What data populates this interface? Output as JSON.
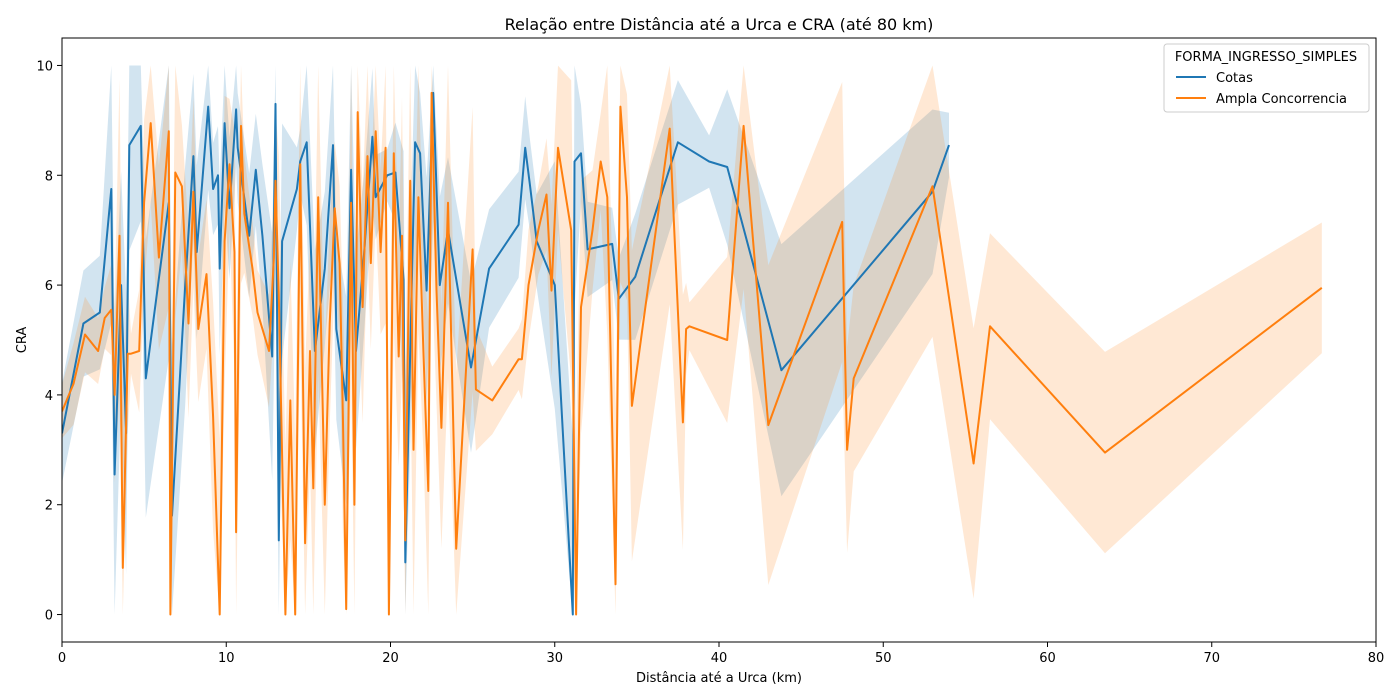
{
  "chart_data": {
    "type": "line",
    "title": "Relação entre Distância até a Urca e CRA (até 80 km)",
    "xlabel": "Distância até a Urca (km)",
    "ylabel": "CRA",
    "xlim": [
      0,
      80
    ],
    "ylim": [
      -0.5,
      10.5
    ],
    "xticks": [
      0,
      10,
      20,
      30,
      40,
      50,
      60,
      70,
      80
    ],
    "yticks": [
      0,
      2,
      4,
      6,
      8,
      10
    ],
    "grid": false,
    "legend": {
      "title": "FORMA_INGRESSO_SIMPLES",
      "placement": "top-right"
    },
    "series": [
      {
        "name": "Cotas",
        "color": "#1f77b4",
        "x": [
          0.0,
          1.3,
          2.3,
          3.0,
          3.2,
          3.6,
          3.9,
          4.1,
          4.8,
          5.1,
          6.5,
          6.7,
          7.5,
          8.0,
          8.2,
          8.9,
          9.2,
          9.5,
          9.6,
          9.9,
          10.2,
          10.6,
          10.7,
          11.4,
          11.8,
          12.2,
          12.8,
          13.0,
          13.2,
          13.4,
          14.3,
          14.5,
          14.9,
          15.4,
          16.0,
          16.5,
          16.7,
          17.3,
          17.6,
          17.9,
          18.4,
          18.9,
          19.1,
          19.8,
          20.3,
          20.8,
          20.9,
          21.5,
          21.8,
          22.2,
          22.6,
          23.0,
          23.5,
          24.9,
          26.0,
          27.8,
          28.2,
          28.5,
          28.9,
          30.0,
          31.1,
          31.2,
          31.6,
          32.0,
          33.5,
          33.9,
          34.9,
          37.5,
          39.4,
          40.5,
          43.8,
          53.0,
          54.0
        ],
        "y": [
          3.3,
          5.3,
          5.5,
          7.75,
          2.55,
          6.0,
          3.3,
          8.55,
          8.9,
          4.3,
          7.5,
          1.8,
          6.0,
          8.35,
          6.6,
          9.25,
          7.75,
          8.0,
          6.3,
          8.95,
          7.4,
          9.2,
          8.5,
          6.9,
          8.1,
          6.9,
          4.7,
          9.3,
          1.35,
          6.8,
          7.75,
          8.25,
          8.6,
          4.8,
          6.3,
          8.55,
          5.2,
          3.9,
          8.1,
          4.8,
          6.6,
          8.7,
          7.6,
          8.0,
          8.05,
          6.1,
          0.95,
          8.6,
          8.4,
          5.9,
          9.5,
          6.0,
          7.0,
          4.5,
          6.3,
          7.1,
          8.5,
          7.8,
          6.8,
          6.0,
          0.0,
          8.25,
          8.4,
          6.65,
          6.75,
          5.75,
          6.15,
          8.6,
          8.25,
          8.15,
          4.45,
          7.7,
          8.55
        ]
      },
      {
        "name": "Ampla Concorrencia",
        "color": "#ff7f0e",
        "x": [
          0.0,
          0.7,
          1.4,
          2.2,
          2.6,
          3.0,
          3.2,
          3.5,
          3.7,
          4.0,
          4.2,
          4.7,
          5.0,
          5.4,
          5.9,
          6.5,
          6.6,
          6.9,
          7.3,
          7.7,
          8.0,
          8.3,
          8.8,
          9.2,
          9.6,
          9.9,
          10.2,
          10.5,
          10.6,
          10.9,
          11.1,
          11.6,
          11.9,
          12.6,
          12.9,
          13.0,
          13.2,
          13.6,
          13.9,
          14.2,
          14.5,
          14.8,
          15.1,
          15.3,
          15.6,
          16.0,
          16.3,
          16.6,
          16.9,
          17.1,
          17.3,
          17.6,
          17.8,
          18.0,
          18.3,
          18.6,
          18.8,
          19.1,
          19.4,
          19.7,
          19.9,
          20.2,
          20.5,
          20.7,
          20.9,
          21.2,
          21.4,
          21.7,
          22.0,
          22.3,
          22.5,
          22.8,
          23.1,
          23.5,
          24.0,
          25.0,
          25.2,
          26.2,
          27.8,
          28.0,
          28.4,
          29.0,
          29.5,
          29.8,
          30.2,
          31.0,
          31.3,
          31.6,
          32.3,
          32.8,
          33.2,
          33.7,
          34.0,
          34.4,
          34.7,
          37.0,
          37.8,
          38.0,
          38.2,
          40.5,
          41.5,
          43.0,
          47.5,
          47.8,
          48.2,
          53.0,
          55.5,
          56.5,
          63.5,
          76.7
        ],
        "y": [
          3.7,
          4.2,
          5.1,
          4.8,
          5.4,
          5.55,
          4.0,
          6.9,
          0.85,
          4.75,
          4.75,
          4.8,
          7.5,
          8.95,
          6.5,
          8.8,
          0.0,
          8.05,
          7.8,
          5.3,
          7.7,
          5.2,
          6.2,
          3.6,
          0.0,
          6.8,
          8.2,
          6.6,
          1.5,
          8.9,
          7.3,
          6.3,
          5.5,
          4.8,
          6.5,
          7.9,
          5.8,
          0.0,
          3.9,
          0.0,
          8.2,
          1.3,
          4.8,
          2.3,
          7.6,
          2.0,
          5.3,
          7.4,
          6.4,
          3.6,
          0.1,
          7.5,
          2.0,
          9.15,
          5.6,
          8.35,
          6.4,
          8.8,
          6.6,
          8.5,
          0.0,
          8.4,
          4.7,
          6.9,
          1.35,
          7.9,
          3.0,
          7.6,
          4.8,
          2.25,
          9.5,
          5.9,
          3.4,
          7.5,
          1.2,
          6.65,
          4.1,
          3.9,
          4.65,
          4.65,
          6.0,
          7.0,
          7.65,
          5.9,
          8.5,
          7.0,
          0.0,
          5.6,
          7.0,
          8.25,
          7.6,
          0.55,
          9.25,
          7.6,
          3.8,
          8.85,
          3.5,
          5.2,
          5.25,
          5.0,
          8.9,
          3.45,
          7.15,
          3.0,
          4.3,
          7.8,
          2.75,
          5.25,
          2.95,
          5.95
        ]
      }
    ]
  }
}
